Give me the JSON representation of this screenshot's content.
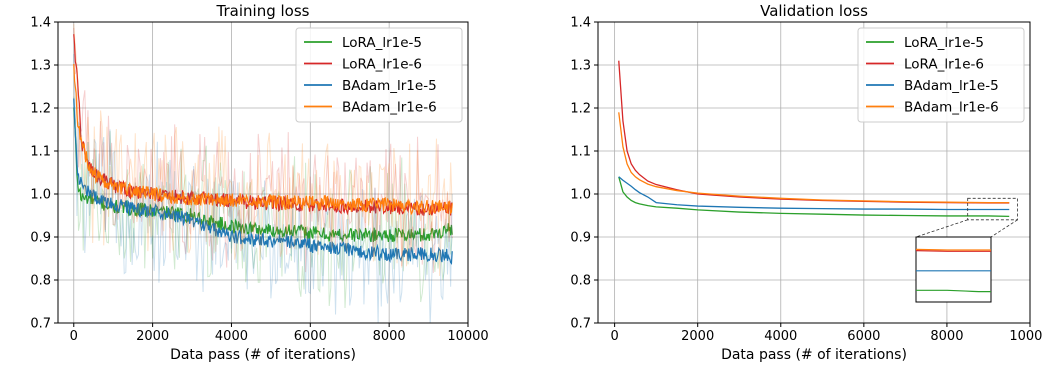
{
  "chart_data": [
    {
      "type": "line",
      "title": "Training loss",
      "xlabel": "Data pass (# of iterations)",
      "ylabel": "",
      "xlim": [
        -400,
        10000
      ],
      "ylim": [
        0.7,
        1.4
      ],
      "xticks": [
        0,
        2000,
        4000,
        6000,
        8000,
        10000
      ],
      "yticks": [
        0.7,
        0.8,
        0.9,
        1.0,
        1.1,
        1.2,
        1.3,
        1.4
      ],
      "grid": true,
      "legend_position": "top-right",
      "x": [
        0,
        100,
        200,
        400,
        600,
        1000,
        1500,
        2000,
        2500,
        3000,
        3500,
        4000,
        4500,
        5000,
        5500,
        6000,
        6500,
        7000,
        7500,
        8000,
        8500,
        9000,
        9600
      ],
      "series": [
        {
          "name": "LoRA_lr1e-5",
          "color": "#2ca02c",
          "noise": 0.012,
          "values": [
            1.2,
            1.02,
            0.99,
            0.99,
            0.98,
            0.97,
            0.965,
            0.96,
            0.955,
            0.95,
            0.935,
            0.925,
            0.92,
            0.915,
            0.915,
            0.91,
            0.905,
            0.905,
            0.905,
            0.905,
            0.905,
            0.905,
            0.92
          ]
        },
        {
          "name": "LoRA_lr1e-6",
          "color": "#d62728",
          "noise": 0.012,
          "values": [
            1.37,
            1.25,
            1.12,
            1.06,
            1.04,
            1.02,
            1.005,
            1.0,
            0.995,
            0.99,
            0.99,
            0.985,
            0.98,
            0.98,
            0.975,
            0.975,
            0.975,
            0.97,
            0.97,
            0.97,
            0.965,
            0.965,
            0.965
          ]
        },
        {
          "name": "BAdam_lr1e-5",
          "color": "#1f77b4",
          "noise": 0.012,
          "values": [
            1.22,
            1.03,
            1.03,
            1.0,
            0.99,
            0.975,
            0.965,
            0.96,
            0.95,
            0.94,
            0.92,
            0.9,
            0.895,
            0.89,
            0.89,
            0.88,
            0.875,
            0.87,
            0.865,
            0.86,
            0.86,
            0.86,
            0.855
          ]
        },
        {
          "name": "BAdam_lr1e-6",
          "color": "#ff7f0e",
          "noise": 0.012,
          "values": [
            1.3,
            1.17,
            1.12,
            1.06,
            1.04,
            1.02,
            1.005,
            1.0,
            0.995,
            0.99,
            0.99,
            0.985,
            0.985,
            0.985,
            0.98,
            0.98,
            0.98,
            0.975,
            0.975,
            0.975,
            0.97,
            0.97,
            0.97
          ]
        }
      ]
    },
    {
      "type": "line",
      "title": "Validation loss",
      "xlabel": "Data pass (# of iterations)",
      "ylabel": "",
      "xlim": [
        -400,
        10000
      ],
      "ylim": [
        0.7,
        1.4
      ],
      "xticks": [
        0,
        2000,
        4000,
        6000,
        8000,
        10000
      ],
      "yticks": [
        0.7,
        0.8,
        0.9,
        1.0,
        1.1,
        1.2,
        1.3,
        1.4
      ],
      "grid": true,
      "legend_position": "top-right",
      "inset": {
        "xlim": [
          8500,
          9700
        ],
        "ylim": [
          0.94,
          0.99
        ]
      },
      "x": [
        100,
        200,
        300,
        400,
        500,
        600,
        800,
        1000,
        1500,
        2000,
        3000,
        4000,
        5000,
        6000,
        7000,
        8000,
        9000,
        9500
      ],
      "series": [
        {
          "name": "LoRA_lr1e-5",
          "color": "#2ca02c",
          "values": [
            1.04,
            1.005,
            0.993,
            0.985,
            0.98,
            0.977,
            0.973,
            0.97,
            0.967,
            0.963,
            0.958,
            0.955,
            0.953,
            0.951,
            0.95,
            0.949,
            0.949,
            0.948
          ]
        },
        {
          "name": "LoRA_lr1e-6",
          "color": "#d62728",
          "values": [
            1.31,
            1.17,
            1.1,
            1.07,
            1.055,
            1.045,
            1.03,
            1.022,
            1.01,
            1.0,
            0.993,
            0.988,
            0.985,
            0.983,
            0.981,
            0.98,
            0.979,
            0.979
          ]
        },
        {
          "name": "BAdam_lr1e-5",
          "color": "#1f77b4",
          "values": [
            1.04,
            1.032,
            1.025,
            1.018,
            1.01,
            1.003,
            0.993,
            0.98,
            0.975,
            0.972,
            0.969,
            0.967,
            0.966,
            0.965,
            0.965,
            0.964,
            0.964,
            0.964
          ]
        },
        {
          "name": "BAdam_lr1e-6",
          "color": "#ff7f0e",
          "values": [
            1.19,
            1.11,
            1.07,
            1.05,
            1.04,
            1.033,
            1.023,
            1.017,
            1.008,
            1.002,
            0.995,
            0.99,
            0.986,
            0.984,
            0.982,
            0.981,
            0.98,
            0.98
          ]
        }
      ]
    }
  ]
}
